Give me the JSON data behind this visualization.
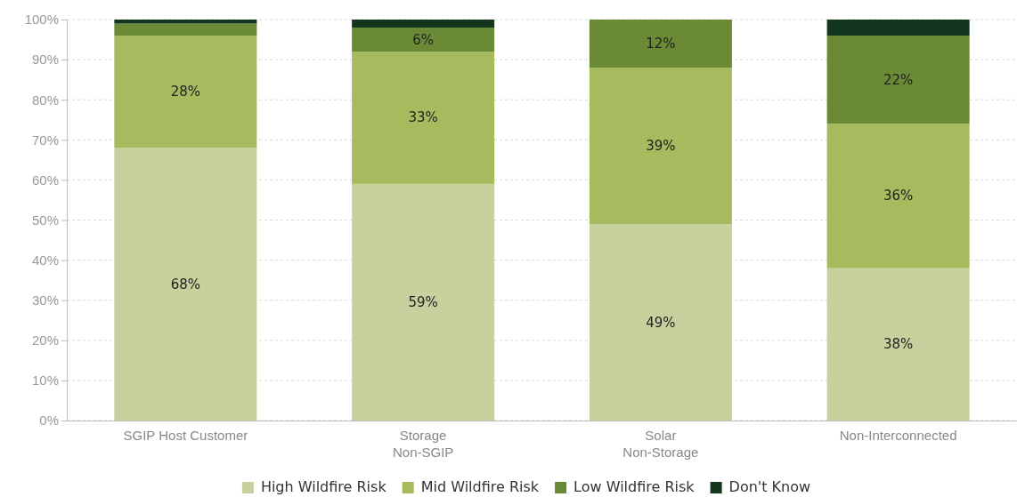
{
  "chart_data": {
    "type": "bar",
    "stacked": true,
    "categories": [
      "SGIP Host Customer",
      "Storage\nNon-SGIP",
      "Solar\nNon-Storage",
      "Non-Interconnected"
    ],
    "series": [
      {
        "name": "High Wildfire Risk",
        "color": "#c6d19e",
        "values": [
          68,
          59,
          49,
          38
        ],
        "value_labels": [
          "68%",
          "59%",
          "49%",
          "38%"
        ]
      },
      {
        "name": "Mid Wildfire Risk",
        "color": "#a6bb5e",
        "values": [
          28,
          33,
          39,
          36
        ],
        "value_labels": [
          "28%",
          "33%",
          "39%",
          "36%"
        ]
      },
      {
        "name": "Low Wildfire Risk",
        "color": "#6a8a35",
        "values": [
          3,
          6,
          12,
          22
        ],
        "value_labels": [
          null,
          "6%",
          "12%",
          "22%"
        ]
      },
      {
        "name": "Don't Know",
        "color": "#14361f",
        "values": [
          1,
          2,
          0,
          4
        ],
        "value_labels": [
          null,
          null,
          null,
          null
        ]
      }
    ],
    "ylim": [
      0,
      100
    ],
    "yticks": [
      {
        "value": 0,
        "label": "0%"
      },
      {
        "value": 10,
        "label": "10%"
      },
      {
        "value": 20,
        "label": "20%"
      },
      {
        "value": 30,
        "label": "30%"
      },
      {
        "value": 40,
        "label": "40%"
      },
      {
        "value": 50,
        "label": "50%"
      },
      {
        "value": 60,
        "label": "60%"
      },
      {
        "value": 70,
        "label": "70%"
      },
      {
        "value": 80,
        "label": "80%"
      },
      {
        "value": 90,
        "label": "90%"
      },
      {
        "value": 100,
        "label": "100%"
      }
    ],
    "grid": "y",
    "legend": "bottom"
  }
}
